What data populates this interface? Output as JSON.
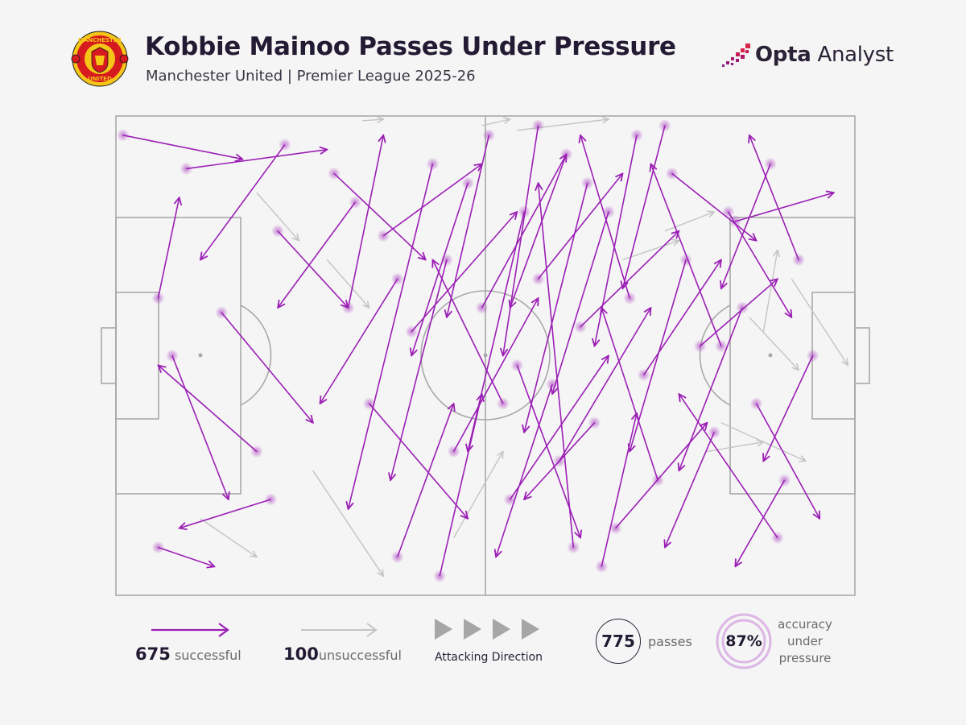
{
  "header": {
    "title": "Kobbie Mainoo Passes Under Pressure",
    "subtitle": "Manchester United | Premier League 2025-26",
    "crest_text_top": "MANCHESTER",
    "crest_text_bottom": "UNITED",
    "brand_bold": "Opta",
    "brand_light": " Analyst"
  },
  "colors": {
    "successful": "#9b1fb5",
    "unsuccessful": "#c4c4c4",
    "pitch_lines": "#a9a9a9",
    "background": "#f5f5f5",
    "accuracy_ring": "#dcb6e4",
    "crest_red": "#d71920",
    "crest_yellow": "#f5c518"
  },
  "legend": {
    "successful_count": "675",
    "successful_label": "successful",
    "unsuccessful_count": "100",
    "unsuccessful_label": "unsuccessful",
    "direction_label": "Attacking Direction",
    "total_passes": "775",
    "total_label": "passes",
    "accuracy_value": "87%",
    "accuracy_label_lines": [
      "accuracy",
      "under",
      "pressure"
    ]
  },
  "chart_data": {
    "type": "scatter",
    "pitch": "full-pitch pass map, attacking left to right",
    "total_passes": 775,
    "successful": 675,
    "unsuccessful": 100,
    "accuracy_pct": 87,
    "successful_passes_sample": [
      [
        1,
        96,
        18,
        91
      ],
      [
        10,
        89,
        30,
        93
      ],
      [
        6,
        62,
        9,
        83
      ],
      [
        24,
        94,
        12,
        70
      ],
      [
        23,
        76,
        33,
        60
      ],
      [
        15,
        59,
        28,
        36
      ],
      [
        8,
        50,
        16,
        20
      ],
      [
        22,
        20,
        9,
        14
      ],
      [
        6,
        10,
        14,
        6
      ],
      [
        20,
        30,
        6,
        48
      ],
      [
        31,
        88,
        44,
        70
      ],
      [
        34,
        82,
        23,
        60
      ],
      [
        38,
        75,
        52,
        90
      ],
      [
        40,
        66,
        29,
        40
      ],
      [
        42,
        55,
        57,
        80
      ],
      [
        45,
        90,
        33,
        18
      ],
      [
        36,
        40,
        50,
        16
      ],
      [
        47,
        70,
        39,
        24
      ],
      [
        48,
        30,
        60,
        62
      ],
      [
        50,
        86,
        42,
        50
      ],
      [
        52,
        60,
        64,
        92
      ],
      [
        55,
        40,
        45,
        70
      ],
      [
        56,
        20,
        70,
        50
      ],
      [
        58,
        80,
        50,
        30
      ],
      [
        60,
        66,
        72,
        88
      ],
      [
        62,
        44,
        54,
        8
      ],
      [
        63,
        28,
        76,
        60
      ],
      [
        64,
        92,
        56,
        60
      ],
      [
        66,
        56,
        80,
        76
      ],
      [
        68,
        36,
        58,
        20
      ],
      [
        70,
        80,
        62,
        42
      ],
      [
        71,
        14,
        84,
        36
      ],
      [
        73,
        62,
        66,
        96
      ],
      [
        75,
        46,
        86,
        70
      ],
      [
        77,
        24,
        69,
        60
      ],
      [
        79,
        88,
        91,
        74
      ],
      [
        81,
        70,
        73,
        30
      ],
      [
        83,
        52,
        94,
        66
      ],
      [
        85,
        34,
        78,
        10
      ],
      [
        87,
        80,
        96,
        58
      ],
      [
        89,
        60,
        80,
        26
      ],
      [
        91,
        40,
        100,
        16
      ],
      [
        93,
        90,
        86,
        64
      ],
      [
        95,
        24,
        88,
        6
      ],
      [
        97,
        70,
        90,
        96
      ],
      [
        99,
        50,
        92,
        28
      ],
      [
        60,
        98,
        55,
        50
      ],
      [
        65,
        10,
        60,
        86
      ],
      [
        40,
        8,
        48,
        40
      ],
      [
        74,
        96,
        68,
        52
      ],
      [
        88,
        78,
        102,
        84
      ],
      [
        94,
        12,
        80,
        42
      ],
      [
        33,
        60,
        38,
        96
      ],
      [
        46,
        4,
        52,
        42
      ],
      [
        53,
        96,
        47,
        58
      ],
      [
        69,
        6,
        74,
        38
      ],
      [
        78,
        98,
        72,
        64
      ],
      [
        86,
        52,
        76,
        90
      ],
      [
        57,
        48,
        66,
        12
      ],
      [
        67,
        86,
        58,
        34
      ]
    ],
    "unsuccessful_passes_sample": [
      [
        35,
        99,
        38,
        100
      ],
      [
        52,
        98,
        56,
        104
      ],
      [
        57,
        97,
        70,
        103
      ],
      [
        12,
        16,
        20,
        8
      ],
      [
        28,
        26,
        38,
        4
      ],
      [
        90,
        58,
        97,
        47
      ],
      [
        96,
        66,
        104,
        48
      ],
      [
        86,
        36,
        98,
        28
      ],
      [
        72,
        70,
        80,
        74
      ],
      [
        78,
        76,
        85,
        80
      ],
      [
        30,
        70,
        36,
        60
      ],
      [
        48,
        12,
        55,
        30
      ],
      [
        20,
        84,
        26,
        74
      ],
      [
        84,
        30,
        92,
        32
      ],
      [
        92,
        55,
        94,
        72
      ]
    ]
  }
}
